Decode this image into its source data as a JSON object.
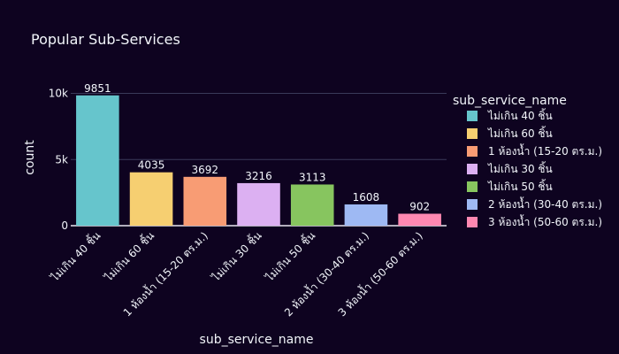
{
  "chart_data": {
    "type": "bar",
    "title": "Popular Sub-Services",
    "xlabel": "sub_service_name",
    "ylabel": "count",
    "categories": [
      "ไม่เกิน 40 ชิ้น",
      "ไม่เกิน 60 ชิ้น",
      "1 ห้องน้ำ (15-20 ตร.ม.)",
      "ไม่เกิน 30 ชิ้น",
      "ไม่เกิน 50 ชิ้น",
      "2 ห้องน้ำ (30-40 ตร.ม.)",
      "3 ห้องน้ำ (50-60 ตร.ม.)"
    ],
    "values": [
      9851,
      4035,
      3692,
      3216,
      3113,
      1608,
      902
    ],
    "colors": [
      "#66c5cc",
      "#f6cf71",
      "#f89c74",
      "#dcb0f2",
      "#87c55f",
      "#9eb9f3",
      "#fe88b1"
    ],
    "ylim": [
      0,
      10370
    ],
    "yticks": [
      0,
      5000,
      10000
    ],
    "ytick_labels": [
      "0",
      "5k",
      "10k"
    ],
    "legend": {
      "title": "sub_service_name",
      "position": "right",
      "items": [
        "ไม่เกิน 40 ชิ้น",
        "ไม่เกิน 60 ชิ้น",
        "1 ห้องน้ำ (15-20 ตร.ม.)",
        "ไม่เกิน 30 ชิ้น",
        "ไม่เกิน 50 ชิ้น",
        "2 ห้องน้ำ (30-40 ตร.ม.)",
        "3 ห้องน้ำ (50-60 ตร.ม.)"
      ]
    },
    "grid": true,
    "background": "#0e0320"
  }
}
